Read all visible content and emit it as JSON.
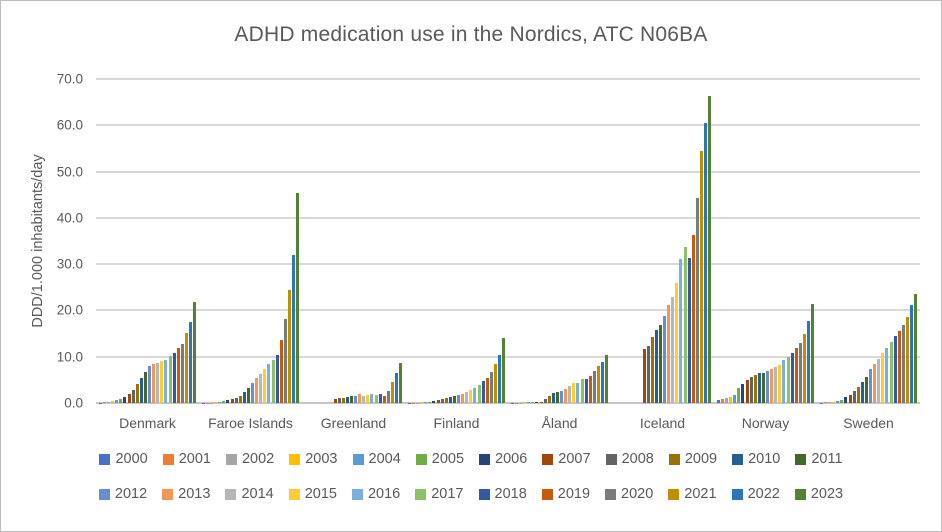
{
  "chart_data": {
    "type": "bar",
    "title": "ADHD medication use in the Nordics, ATC N06BA",
    "xlabel": "",
    "ylabel": "DDD/1.000 inhabitants/day",
    "ylim": [
      0,
      70
    ],
    "ytick_step": 10,
    "ytick_labels": [
      "0.0",
      "10.0",
      "20.0",
      "30.0",
      "40.0",
      "50.0",
      "60.0",
      "70.0"
    ],
    "grid": true,
    "legend_position": "bottom",
    "legend_rows": 2,
    "text_color": "#595959",
    "grid_color": "#d9d9d9",
    "categories": [
      "Denmark",
      "Faroe Islands",
      "Greenland",
      "Finland",
      "Åland",
      "Iceland",
      "Norway",
      "Sweden"
    ],
    "series": [
      {
        "name": "2000",
        "color": "#4472C4",
        "values": [
          0.1,
          0.05,
          null,
          0.1,
          0.1,
          null,
          0.7,
          0.1
        ]
      },
      {
        "name": "2001",
        "color": "#ED7D31",
        "values": [
          0.2,
          0.1,
          null,
          0.1,
          0.1,
          null,
          0.9,
          0.15
        ]
      },
      {
        "name": "2002",
        "color": "#A5A5A5",
        "values": [
          0.3,
          0.1,
          null,
          0.1,
          0.1,
          null,
          1.1,
          0.2
        ]
      },
      {
        "name": "2003",
        "color": "#FFC000",
        "values": [
          0.5,
          0.15,
          null,
          0.15,
          0.15,
          null,
          1.3,
          0.3
        ]
      },
      {
        "name": "2004",
        "color": "#5B9BD5",
        "values": [
          0.6,
          0.2,
          null,
          0.2,
          0.2,
          null,
          1.7,
          0.45
        ]
      },
      {
        "name": "2005",
        "color": "#70AD47",
        "values": [
          0.9,
          0.5,
          null,
          0.25,
          0.2,
          null,
          3.3,
          0.6
        ]
      },
      {
        "name": "2006",
        "color": "#264478",
        "values": [
          1.4,
          0.6,
          null,
          0.4,
          0.3,
          null,
          4.2,
          1.2
        ]
      },
      {
        "name": "2007",
        "color": "#9E480E",
        "values": [
          2.0,
          0.8,
          0.8,
          0.6,
          0.3,
          11.7,
          5.0,
          1.8
        ]
      },
      {
        "name": "2008",
        "color": "#636363",
        "values": [
          2.8,
          1.1,
          1.0,
          0.8,
          0.9,
          12.4,
          5.6,
          2.6
        ]
      },
      {
        "name": "2009",
        "color": "#997300",
        "values": [
          4.1,
          1.5,
          1.1,
          1.0,
          1.5,
          14.2,
          6.0,
          3.5
        ]
      },
      {
        "name": "2010",
        "color": "#255E91",
        "values": [
          5.3,
          2.4,
          1.3,
          1.2,
          2.2,
          15.8,
          6.5,
          4.5
        ]
      },
      {
        "name": "2011",
        "color": "#43682B",
        "values": [
          6.6,
          3.2,
          1.6,
          1.5,
          2.4,
          16.9,
          6.5,
          5.6
        ]
      },
      {
        "name": "2012",
        "color": "#698ED0",
        "values": [
          7.9,
          4.3,
          1.5,
          1.7,
          2.5,
          18.9,
          6.9,
          7.3
        ]
      },
      {
        "name": "2013",
        "color": "#F1975A",
        "values": [
          8.4,
          5.4,
          1.9,
          1.9,
          3.0,
          21.2,
          7.3,
          8.5
        ]
      },
      {
        "name": "2014",
        "color": "#B7B7B7",
        "values": [
          8.7,
          6.3,
          1.5,
          2.4,
          3.7,
          22.9,
          7.8,
          9.6
        ]
      },
      {
        "name": "2015",
        "color": "#FFCD33",
        "values": [
          9.0,
          7.3,
          1.8,
          2.8,
          4.4,
          25.9,
          8.2,
          10.9
        ]
      },
      {
        "name": "2016",
        "color": "#7CAFDD",
        "values": [
          9.3,
          8.4,
          1.9,
          3.2,
          4.3,
          31.1,
          9.2,
          11.9
        ]
      },
      {
        "name": "2017",
        "color": "#8CC168",
        "values": [
          10.1,
          9.3,
          1.8,
          4.0,
          5.2,
          33.8,
          9.9,
          13.2
        ]
      },
      {
        "name": "2018",
        "color": "#335AA1",
        "values": [
          10.9,
          10.4,
          1.9,
          4.8,
          5.1,
          31.3,
          10.8,
          14.5
        ]
      },
      {
        "name": "2019",
        "color": "#C55A11",
        "values": [
          11.9,
          13.6,
          1.5,
          5.5,
          5.8,
          36.3,
          11.9,
          15.5
        ]
      },
      {
        "name": "2020",
        "color": "#7B7B7B",
        "values": [
          12.8,
          18.2,
          2.7,
          6.8,
          7.0,
          44.4,
          12.9,
          16.8
        ]
      },
      {
        "name": "2021",
        "color": "#BF8F00",
        "values": [
          15.1,
          24.4,
          4.5,
          8.5,
          8.0,
          54.5,
          15.0,
          18.6
        ]
      },
      {
        "name": "2022",
        "color": "#2E75B6",
        "values": [
          17.6,
          32.0,
          6.4,
          10.4,
          8.8,
          60.4,
          17.7,
          21.1
        ]
      },
      {
        "name": "2023",
        "color": "#548235",
        "values": [
          21.8,
          45.4,
          8.6,
          14.0,
          10.3,
          66.3,
          21.4,
          23.6
        ]
      }
    ]
  }
}
